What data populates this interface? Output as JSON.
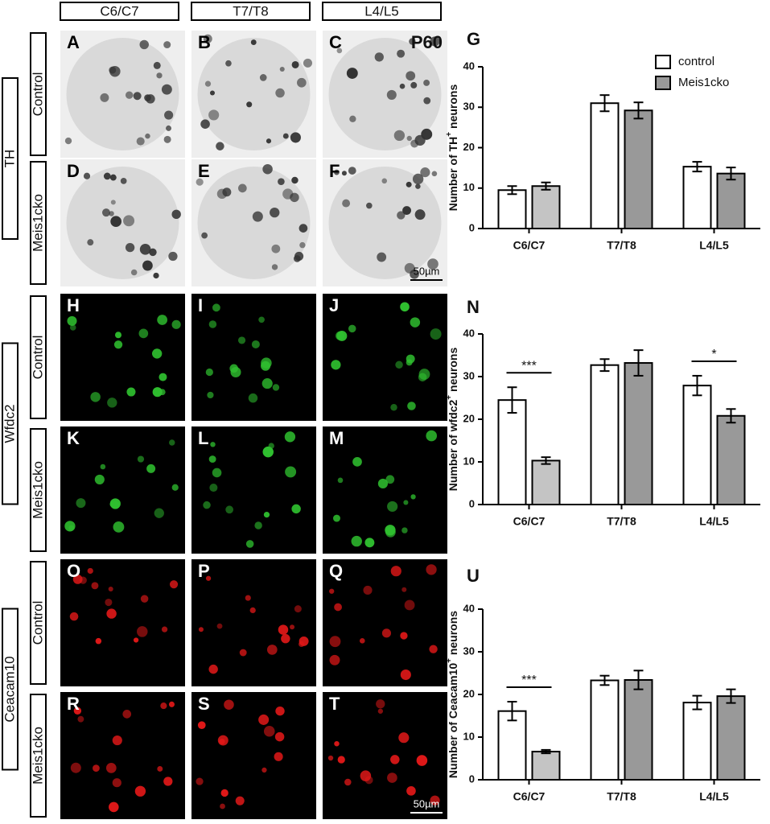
{
  "column_headers": [
    "C6/C7",
    "T7/T8",
    "L4/L5"
  ],
  "row_groups": [
    {
      "label": "TH",
      "rows": [
        "Control",
        "Meis1cko"
      ]
    },
    {
      "label": "Wfdc2",
      "rows": [
        "Control",
        "Meis1cko"
      ]
    },
    {
      "label": "Ceacam10",
      "rows": [
        "Control",
        "Meis1cko"
      ]
    }
  ],
  "panel_letters": [
    [
      "A",
      "B",
      "C"
    ],
    [
      "D",
      "E",
      "F"
    ],
    [
      "H",
      "I",
      "J"
    ],
    [
      "K",
      "L",
      "M"
    ],
    [
      "O",
      "P",
      "Q"
    ],
    [
      "R",
      "S",
      "T"
    ]
  ],
  "age_label": "P60",
  "scale_bars": [
    "50µm",
    "50µm"
  ],
  "chart_data": [
    {
      "type": "bar",
      "letter": "G",
      "y_label": "Number of TH",
      "y_label_sup": "+",
      "y_label_end": " neurons",
      "categories": [
        "C6/C7",
        "T7/T8",
        "L4/L5"
      ],
      "series": [
        {
          "name": "control",
          "color": "#ffffff",
          "values": [
            9.5,
            31,
            15.3
          ],
          "errors": [
            1,
            2,
            1.2
          ]
        },
        {
          "name": "Meis1cko",
          "color": "#999999",
          "colors": [
            "#c4c4c4",
            "#999999",
            "#999999"
          ],
          "values": [
            10.5,
            29.2,
            13.6
          ],
          "errors": [
            0.9,
            2,
            1.5
          ]
        }
      ],
      "ylim": [
        0,
        40
      ],
      "yticks": [
        0,
        10,
        20,
        30,
        40
      ],
      "legend": "upper right"
    },
    {
      "type": "bar",
      "letter": "N",
      "y_label": "Number of wfdc2",
      "y_label_sup": "+",
      "y_label_end": " neurons",
      "categories": [
        "C6/C7",
        "T7/T8",
        "L4/L5"
      ],
      "series": [
        {
          "color": "#ffffff",
          "values": [
            24.5,
            32.7,
            27.9
          ],
          "errors": [
            3,
            1.4,
            2.3
          ]
        },
        {
          "color": "#999999",
          "colors": [
            "#c4c4c4",
            "#999999",
            "#999999"
          ],
          "values": [
            10.3,
            33.2,
            20.8
          ],
          "errors": [
            0.8,
            3,
            1.6
          ]
        }
      ],
      "ylim": [
        0,
        40
      ],
      "yticks": [
        0,
        10,
        20,
        30,
        40
      ],
      "annotations": [
        {
          "text": "***",
          "category": 0
        },
        {
          "text": "*",
          "category": 2
        }
      ]
    },
    {
      "type": "bar",
      "letter": "U",
      "y_label": "Number of Ceacam10",
      "y_label_sup": "+",
      "y_label_end": " neurons",
      "categories": [
        "C6/C7",
        "T7/T8",
        "L4/L5"
      ],
      "series": [
        {
          "color": "#ffffff",
          "values": [
            16.1,
            23.3,
            18.1
          ],
          "errors": [
            2.2,
            1.1,
            1.6
          ]
        },
        {
          "color": "#999999",
          "colors": [
            "#c4c4c4",
            "#999999",
            "#999999"
          ],
          "values": [
            6.6,
            23.4,
            19.6
          ],
          "errors": [
            0.4,
            2.2,
            1.6
          ]
        }
      ],
      "ylim": [
        0,
        40
      ],
      "yticks": [
        0,
        10,
        20,
        30,
        40
      ],
      "annotations": [
        {
          "text": "***",
          "category": 0
        }
      ]
    }
  ]
}
